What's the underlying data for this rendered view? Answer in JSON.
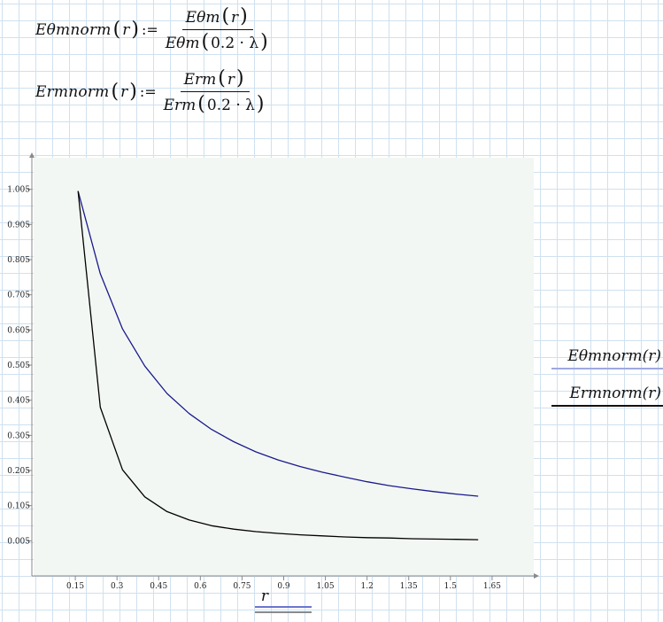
{
  "equations": [
    {
      "lhs_name": "Eθmnorm",
      "arg": "r",
      "assign": ":=",
      "num_name": "Eθm",
      "num_arg": "r",
      "den_name": "Eθm",
      "den_arg": "0.2 · λ"
    },
    {
      "lhs_name": "Ermnorm",
      "arg": "r",
      "assign": ":=",
      "num_name": "Erm",
      "num_arg": "r",
      "den_name": "Erm",
      "den_arg": "0.2 · λ"
    }
  ],
  "legend": {
    "entry1": "Eθmnorm(r)",
    "entry2": "Ermnorm(r)"
  },
  "colors": {
    "series1": "#1a1a8c",
    "series2": "#000000",
    "plot_bg": "#f3f7f4",
    "axis": "#8a8a8a"
  },
  "chart_data": {
    "type": "line",
    "xlabel": "r",
    "xlim": [
      0.0,
      1.8
    ],
    "ylim": [
      -0.095,
      1.095
    ],
    "x_ticks": [
      "0.15",
      "0.3",
      "0.45",
      "0.6",
      "0.75",
      "0.9",
      "1.05",
      "1.2",
      "1.35",
      "1.5",
      "1.65"
    ],
    "y_ticks": [
      "1.005",
      "0.905",
      "0.805",
      "0.705",
      "0.605",
      "0.505",
      "0.405",
      "0.305",
      "0.205",
      "0.105",
      "0.005"
    ],
    "series": [
      {
        "name": "Eθmnorm(r)",
        "x": [
          0.16,
          0.24,
          0.32,
          0.4,
          0.48,
          0.56,
          0.64,
          0.72,
          0.8,
          0.88,
          0.96,
          1.04,
          1.12,
          1.2,
          1.28,
          1.36,
          1.44,
          1.52,
          1.6
        ],
        "values": [
          1.0,
          0.765,
          0.608,
          0.502,
          0.424,
          0.367,
          0.322,
          0.287,
          0.258,
          0.235,
          0.216,
          0.2,
          0.186,
          0.173,
          0.162,
          0.153,
          0.145,
          0.138,
          0.132
        ]
      },
      {
        "name": "Ermnorm(r)",
        "x": [
          0.16,
          0.24,
          0.32,
          0.4,
          0.48,
          0.56,
          0.64,
          0.72,
          0.8,
          0.88,
          0.96,
          1.04,
          1.12,
          1.2,
          1.28,
          1.36,
          1.44,
          1.52,
          1.6
        ],
        "values": [
          1.0,
          0.385,
          0.207,
          0.13,
          0.088,
          0.064,
          0.048,
          0.038,
          0.031,
          0.026,
          0.022,
          0.019,
          0.016,
          0.014,
          0.013,
          0.011,
          0.01,
          0.009,
          0.008
        ]
      }
    ]
  }
}
